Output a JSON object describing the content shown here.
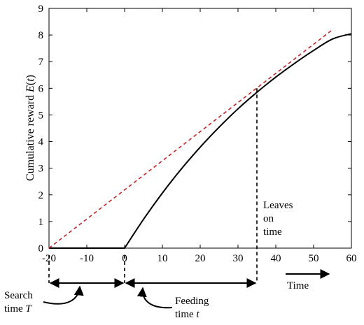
{
  "chart_data": {
    "type": "line",
    "xlim": [
      -20,
      60
    ],
    "ylim": [
      0,
      9
    ],
    "xticks": [
      "-20",
      "-10",
      "0",
      "10",
      "20",
      "30",
      "40",
      "50",
      "60"
    ],
    "yticks": [
      "0",
      "1",
      "2",
      "3",
      "4",
      "5",
      "6",
      "7",
      "8",
      "9"
    ],
    "ylabel_prefix": "Cumulative reward ",
    "ylabel_var": "E",
    "ylabel_paren_open": "(",
    "ylabel_arg": "t",
    "ylabel_paren_close": ")",
    "grid": false,
    "series": [
      {
        "style": "solid",
        "color": "#000000",
        "x": [
          -20,
          0,
          5,
          10,
          15,
          20,
          25,
          30,
          35,
          40,
          45,
          50,
          55,
          60
        ],
        "y": [
          0,
          0,
          1.08,
          2.07,
          2.97,
          3.79,
          4.54,
          5.23,
          5.85,
          6.42,
          6.94,
          7.42,
          7.85,
          8.05
        ]
      },
      {
        "style": "dashed",
        "color": "#c0262a",
        "x": [
          -20,
          55
        ],
        "y": [
          0,
          8.2
        ]
      }
    ],
    "annotations": {
      "leaves": [
        "Leaves",
        "on",
        "time"
      ],
      "time": "Time",
      "search_line1": "Search",
      "search_line2_text": "time ",
      "search_line2_var": "T",
      "feeding_line1": "Feeding",
      "feeding_line2_text": "time ",
      "feeding_line2_var": "t",
      "vertical_markers_x": [
        -20,
        0,
        35
      ],
      "leave_x": 35,
      "leave_y": 6
    }
  }
}
